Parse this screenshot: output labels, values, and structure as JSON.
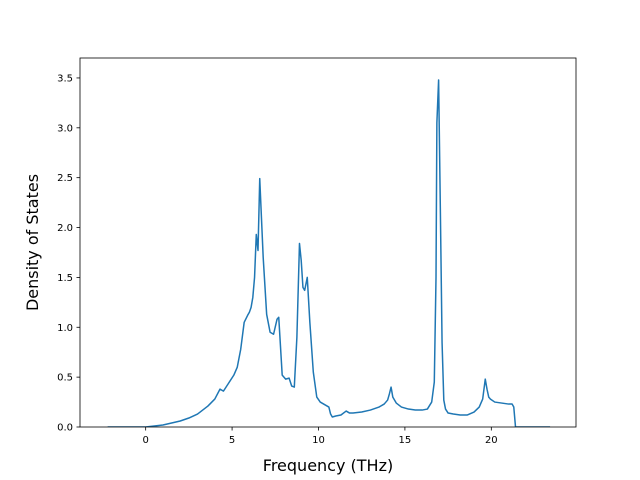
{
  "chart_data": {
    "type": "line",
    "title": "",
    "xlabel": "Frequency (THz)",
    "ylabel": "Density of States",
    "xlim": [
      -3.8,
      24.9
    ],
    "ylim": [
      0,
      3.7
    ],
    "xticks": [
      0,
      5,
      10,
      15,
      20
    ],
    "yticks": [
      0.0,
      0.5,
      1.0,
      1.5,
      2.0,
      2.5,
      3.0,
      3.5
    ],
    "xtick_labels": [
      "0",
      "5",
      "10",
      "15",
      "20"
    ],
    "ytick_labels": [
      "0.0",
      "0.5",
      "1.0",
      "1.5",
      "2.0",
      "2.5",
      "3.0",
      "3.5"
    ],
    "grid": false,
    "legend": "none",
    "series": [
      {
        "color": "#1f77b4",
        "x": [
          -2.2,
          -1.0,
          0.0,
          0.5,
          1.0,
          1.5,
          2.0,
          2.5,
          3.0,
          3.3,
          3.6,
          4.0,
          4.3,
          4.5,
          4.8,
          5.1,
          5.3,
          5.5,
          5.7,
          5.9,
          6.0,
          6.1,
          6.2,
          6.3,
          6.4,
          6.5,
          6.6,
          6.8,
          7.0,
          7.2,
          7.4,
          7.6,
          7.7,
          7.9,
          8.1,
          8.3,
          8.45,
          8.6,
          8.75,
          8.9,
          9.0,
          9.1,
          9.2,
          9.35,
          9.5,
          9.7,
          9.9,
          10.1,
          10.4,
          10.6,
          10.7,
          10.8,
          11.0,
          11.3,
          11.6,
          11.8,
          12.0,
          12.5,
          13.0,
          13.5,
          13.8,
          14.0,
          14.1,
          14.2,
          14.3,
          14.5,
          14.8,
          15.2,
          15.6,
          16.0,
          16.3,
          16.55,
          16.7,
          16.8,
          16.85,
          16.95,
          17.05,
          17.15,
          17.25,
          17.35,
          17.5,
          17.8,
          18.2,
          18.6,
          19.0,
          19.3,
          19.5,
          19.65,
          19.75,
          19.85,
          19.95,
          20.2,
          20.6,
          21.0,
          21.2,
          21.3,
          21.4,
          21.6,
          23.4
        ],
        "y": [
          0.0,
          0.0,
          0.0,
          0.01,
          0.02,
          0.04,
          0.06,
          0.09,
          0.13,
          0.17,
          0.21,
          0.28,
          0.38,
          0.36,
          0.44,
          0.52,
          0.6,
          0.78,
          1.05,
          1.12,
          1.15,
          1.2,
          1.3,
          1.5,
          1.93,
          1.77,
          2.49,
          1.7,
          1.13,
          0.95,
          0.93,
          1.08,
          1.1,
          0.52,
          0.48,
          0.49,
          0.41,
          0.4,
          0.9,
          1.84,
          1.67,
          1.4,
          1.37,
          1.5,
          1.05,
          0.55,
          0.3,
          0.25,
          0.22,
          0.2,
          0.13,
          0.1,
          0.11,
          0.12,
          0.16,
          0.14,
          0.14,
          0.15,
          0.17,
          0.2,
          0.23,
          0.27,
          0.33,
          0.4,
          0.3,
          0.24,
          0.2,
          0.18,
          0.17,
          0.17,
          0.18,
          0.25,
          0.45,
          1.5,
          3.05,
          3.48,
          2.2,
          0.85,
          0.27,
          0.18,
          0.14,
          0.13,
          0.12,
          0.12,
          0.15,
          0.2,
          0.28,
          0.48,
          0.38,
          0.3,
          0.28,
          0.25,
          0.24,
          0.23,
          0.23,
          0.2,
          0.0,
          0.0,
          0.0
        ]
      }
    ]
  }
}
